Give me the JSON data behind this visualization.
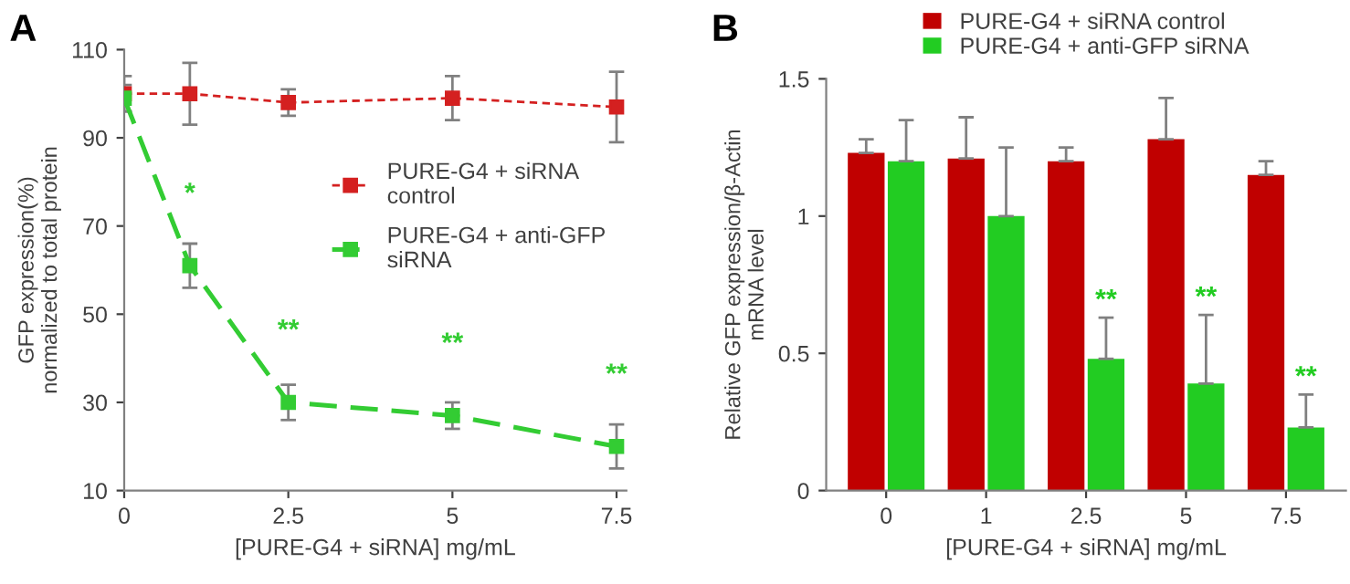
{
  "chart_data": [
    {
      "type": "line",
      "title": "A",
      "xlabel": "[PURE-G4 + siRNA] mg/mL",
      "ylabel": "GFP expression(%)\nnormalized to total protein",
      "x": [
        0,
        1,
        2.5,
        5,
        7.5
      ],
      "xlim": [
        0,
        7.65
      ],
      "xticks": [
        0,
        2.5,
        5,
        7.5
      ],
      "ylim": [
        10,
        110
      ],
      "yticks": [
        10,
        30,
        50,
        70,
        90,
        110
      ],
      "series": [
        {
          "name": "PURE-G4 + siRNA\ncontrol",
          "color": "#d42020",
          "values": [
            100,
            100,
            98,
            99,
            97
          ],
          "errors": [
            4,
            7,
            3,
            5,
            8
          ],
          "line_style": "dotted"
        },
        {
          "name": "PURE-G4 + anti-GFP\nsiRNA",
          "color": "#33cc33",
          "values": [
            99,
            61,
            30,
            27,
            20
          ],
          "errors": [
            3,
            5,
            4,
            3,
            5
          ],
          "line_style": "dashed"
        }
      ],
      "marker": "square",
      "grid": false,
      "legend": "right",
      "annotations": [
        {
          "text": "*",
          "x": 1,
          "y": 61
        },
        {
          "text": "**",
          "x": 2.5,
          "y": 30
        },
        {
          "text": "**",
          "x": 5,
          "y": 27
        },
        {
          "text": "**",
          "x": 7.5,
          "y": 20
        }
      ]
    },
    {
      "type": "bar",
      "title": "B",
      "xlabel": "[PURE-G4 + siRNA] mg/mL",
      "ylabel": "Relative GFP expression/β-Actin\nmRNA level",
      "categories": [
        "0",
        "1",
        "2.5",
        "5",
        "7.5"
      ],
      "ylim": [
        0,
        1.5
      ],
      "yticks": [
        0,
        0.5,
        1,
        1.5
      ],
      "series": [
        {
          "name": "PURE-G4 + siRNA control",
          "color": "#c00000",
          "values": [
            1.23,
            1.21,
            1.2,
            1.28,
            1.15
          ],
          "errors": [
            [
              1.23,
              1.28
            ],
            [
              1.21,
              1.36
            ],
            [
              1.2,
              1.25
            ],
            [
              1.28,
              1.43
            ],
            [
              1.15,
              1.2
            ]
          ]
        },
        {
          "name": "PURE-G4 + anti-GFP siRNA",
          "color": "#22cc22",
          "values": [
            1.2,
            1.0,
            0.48,
            0.39,
            0.23
          ],
          "errors": [
            [
              1.2,
              1.35
            ],
            [
              1.0,
              1.25
            ],
            [
              0.48,
              0.63
            ],
            [
              0.39,
              0.64
            ],
            [
              0.23,
              0.35
            ]
          ]
        }
      ],
      "grid": false,
      "legend": "top",
      "annotations": [
        {
          "text": "**",
          "x": "2.5",
          "y": 0.69
        },
        {
          "text": "**",
          "x": "5",
          "y": 0.7
        },
        {
          "text": "**",
          "x": "7.5",
          "y": 0.41
        }
      ]
    }
  ]
}
